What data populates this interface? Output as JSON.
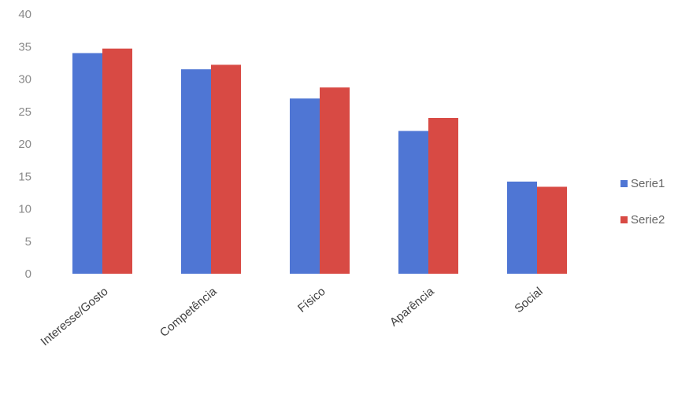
{
  "chart_data": {
    "type": "bar",
    "categories": [
      "Interesse/Gosto",
      "Competência",
      "Físico",
      "Aparência",
      "Social"
    ],
    "series": [
      {
        "name": "Serie1",
        "values": [
          34,
          31.5,
          27,
          22,
          14.2
        ]
      },
      {
        "name": "Serie2",
        "values": [
          34.7,
          32.2,
          28.7,
          24,
          13.4
        ]
      }
    ],
    "ylim": [
      0,
      40
    ],
    "yticks": [
      "0",
      "5",
      "10",
      "15",
      "20",
      "25",
      "30",
      "35",
      "40"
    ],
    "grid": false,
    "legend_position": "right",
    "colors": [
      "#4f76d4",
      "#d84a44"
    ]
  }
}
